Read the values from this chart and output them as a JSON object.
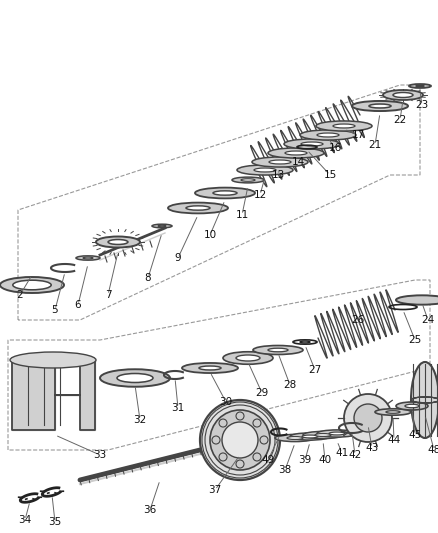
{
  "bg_color": "#ffffff",
  "line_color": "#444444",
  "dark_color": "#222222",
  "gray_color": "#888888",
  "light_gray": "#cccccc",
  "figsize": [
    4.39,
    5.33
  ],
  "dpi": 100,
  "label_fontsize": 7.5,
  "label_color": "#111111",
  "annotation_color": "#555555"
}
